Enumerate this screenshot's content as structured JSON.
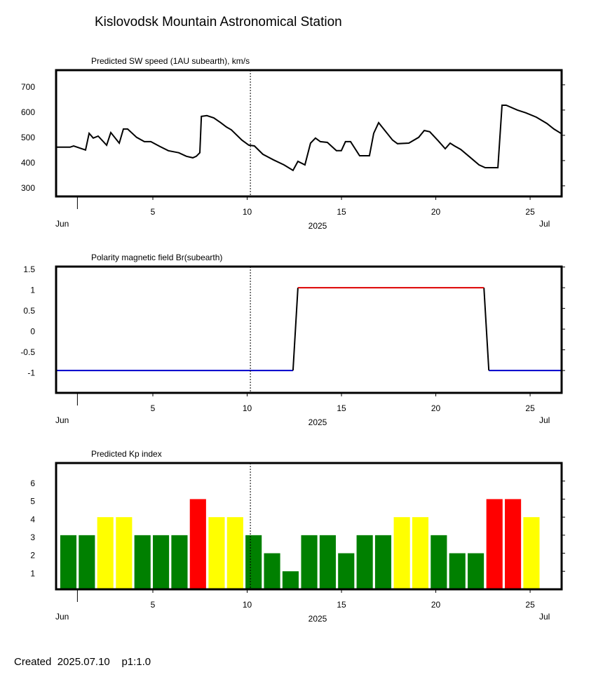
{
  "title": "Kislovodsk Mountain Astronomical Station",
  "footer": "Created  2025.07.10    p1:1.0",
  "chart_data": [
    {
      "type": "line",
      "title": "Predicted SW speed (1AU subearth), km/s",
      "color": "#000000",
      "xlim": [
        -0.13,
        26.67
      ],
      "xticks": [
        5,
        10,
        15,
        20,
        25
      ],
      "month_start": 1,
      "month_labels": [
        "Jun",
        "Jul"
      ],
      "year_label": "2025",
      "now_line": 10.17,
      "ylim": [
        258,
        758
      ],
      "yticks": [
        300,
        400,
        500,
        600,
        700
      ],
      "x": [
        -0.13,
        0.61,
        0.8,
        1.43,
        1.62,
        1.84,
        2.1,
        2.55,
        2.77,
        3.22,
        3.44,
        3.66,
        4.14,
        4.55,
        4.89,
        5.37,
        5.82,
        6.37,
        6.78,
        7.12,
        7.3,
        7.49,
        7.57,
        7.86,
        8.23,
        8.6,
        8.9,
        9.16,
        9.72,
        10.09,
        10.38,
        10.83,
        11.39,
        11.95,
        12.43,
        12.69,
        13.06,
        13.36,
        13.62,
        13.88,
        14.25,
        14.73,
        14.99,
        15.21,
        15.48,
        15.96,
        16.48,
        16.71,
        16.97,
        17.27,
        17.71,
        17.97,
        18.57,
        19.09,
        19.39,
        19.68,
        20.13,
        20.5,
        20.76,
        20.99,
        21.32,
        21.8,
        22.29,
        22.62,
        22.92,
        23.29,
        23.51,
        23.73,
        24.33,
        24.77,
        25.33,
        25.89,
        26.26,
        26.67
      ],
      "values": [
        453,
        453,
        458,
        442,
        508,
        489,
        497,
        461,
        511,
        469,
        525,
        525,
        492,
        475,
        475,
        456,
        439,
        431,
        417,
        411,
        417,
        431,
        575,
        578,
        569,
        550,
        533,
        522,
        481,
        461,
        458,
        425,
        403,
        383,
        361,
        397,
        383,
        469,
        489,
        475,
        472,
        439,
        439,
        475,
        475,
        419,
        419,
        508,
        550,
        522,
        481,
        467,
        469,
        492,
        519,
        514,
        478,
        447,
        469,
        458,
        444,
        414,
        383,
        372,
        372,
        372,
        619,
        619,
        600,
        589,
        572,
        547,
        525,
        506
      ]
    },
    {
      "type": "line",
      "title": "Polarity magnetic field  Br(subearth)",
      "xlim": [
        -0.13,
        26.67
      ],
      "xticks": [
        5,
        10,
        15,
        20,
        25
      ],
      "month_start": 1,
      "month_labels": [
        "Jun",
        "Jul"
      ],
      "year_label": "2025",
      "now_line": 10.17,
      "ylim": [
        -1.54,
        1.51
      ],
      "yticks": [
        1.5,
        1,
        0.5,
        0,
        -0.5,
        -1
      ],
      "series": [
        {
          "color": "#0000cc",
          "x": [
            -0.13,
            12.43,
            null,
            22.81,
            26.67
          ],
          "values": [
            -1,
            -1,
            null,
            -1,
            -1
          ]
        },
        {
          "color": "#000000",
          "x": [
            12.43,
            12.69,
            null,
            22.55,
            22.81
          ],
          "values": [
            -1,
            1,
            null,
            1,
            -1
          ]
        },
        {
          "color": "#dd0000",
          "x": [
            12.69,
            22.55
          ],
          "values": [
            1,
            1
          ]
        }
      ]
    },
    {
      "type": "bar",
      "title": "Predicted Kp index",
      "xlim": [
        -0.13,
        26.67
      ],
      "xticks": [
        5,
        10,
        15,
        20,
        25
      ],
      "month_start": 1,
      "month_labels": [
        "Jun",
        "Jul"
      ],
      "year_label": "2025",
      "now_line": 10.17,
      "ylim": [
        0,
        7
      ],
      "yticks": [
        1,
        2,
        3,
        4,
        5,
        6
      ],
      "x": [
        0.52,
        1.5,
        2.48,
        3.47,
        4.45,
        5.43,
        6.41,
        7.39,
        8.38,
        9.36,
        10.34,
        11.32,
        12.3,
        13.29,
        14.27,
        15.25,
        16.23,
        17.21,
        18.2,
        19.18,
        20.16,
        21.14,
        22.12,
        23.11,
        24.09,
        25.07
      ],
      "values": [
        3,
        3,
        4,
        4,
        3,
        3,
        3,
        5,
        4,
        4,
        3,
        2,
        1,
        3,
        3,
        2,
        3,
        3,
        4,
        4,
        3,
        2,
        2,
        5,
        5,
        4
      ],
      "colors": [
        "#008000",
        "#008000",
        "#ffff00",
        "#ffff00",
        "#008000",
        "#008000",
        "#008000",
        "#ff0000",
        "#ffff00",
        "#ffff00",
        "#008000",
        "#008000",
        "#008000",
        "#008000",
        "#008000",
        "#008000",
        "#008000",
        "#008000",
        "#ffff00",
        "#ffff00",
        "#008000",
        "#008000",
        "#008000",
        "#ff0000",
        "#ff0000",
        "#ffff00"
      ]
    }
  ]
}
